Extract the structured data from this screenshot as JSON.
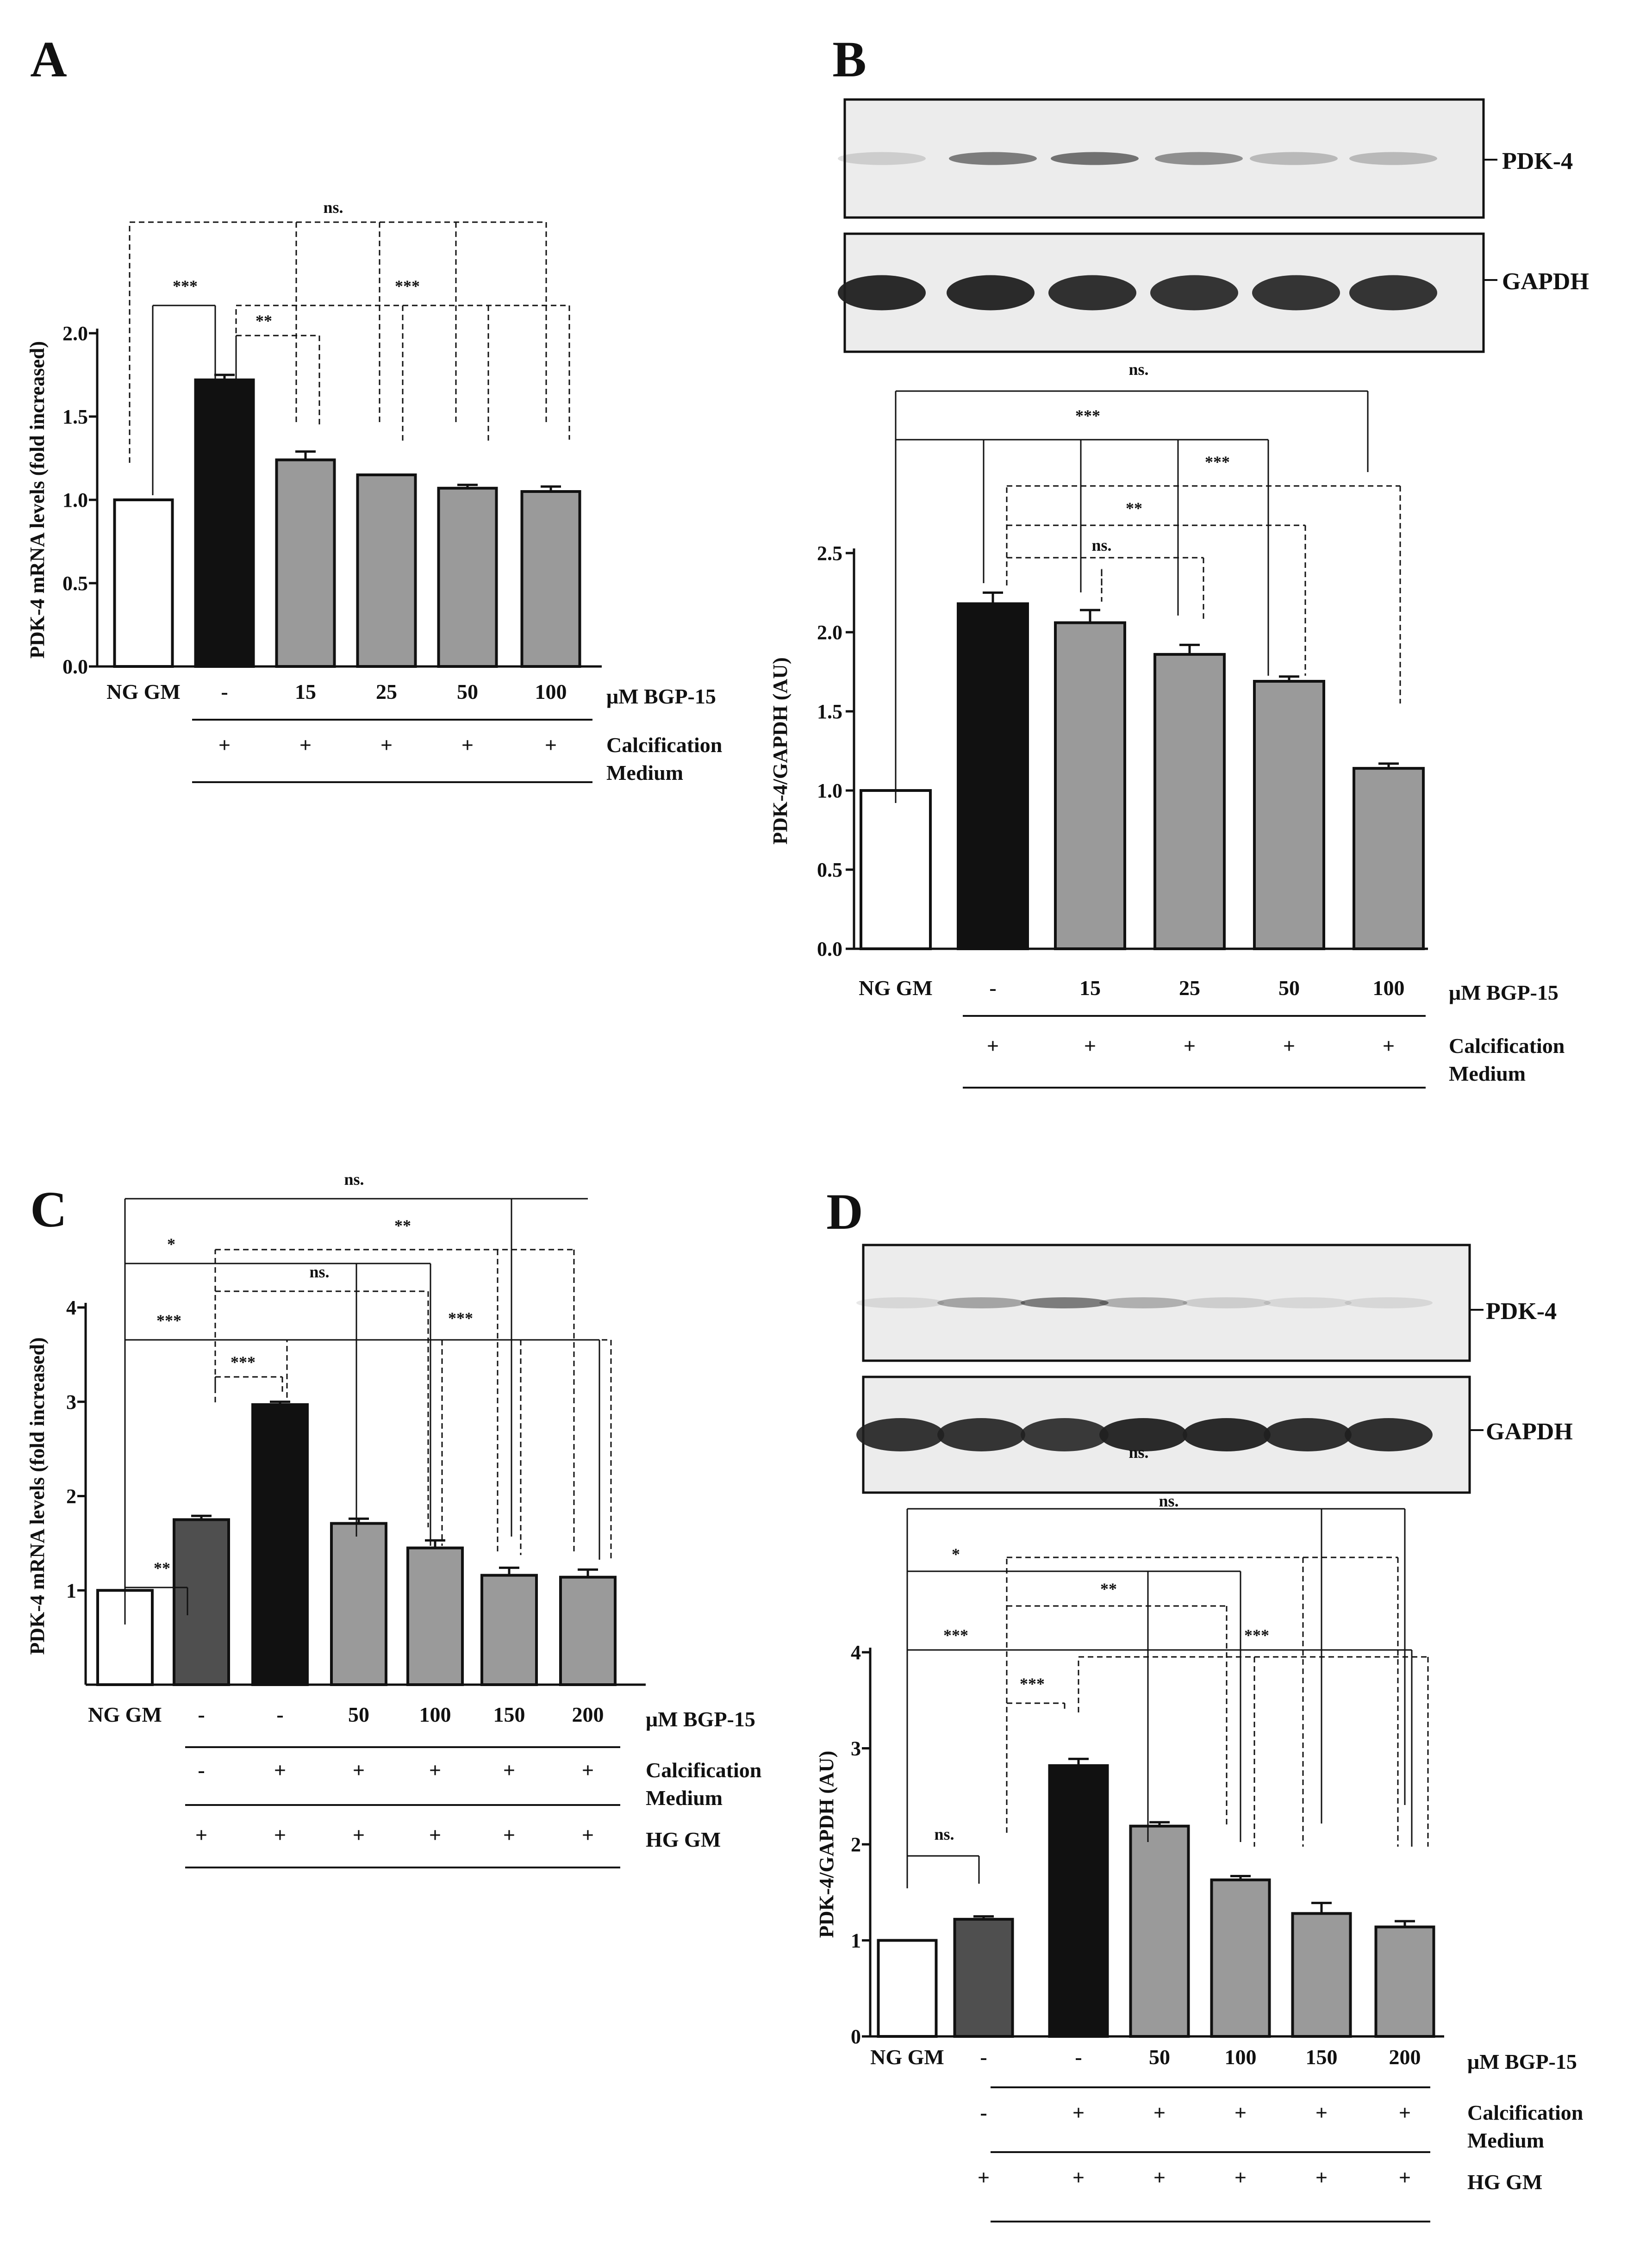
{
  "colors": {
    "white_bar": "#ffffff",
    "ng_dark": "#4f4f4f",
    "black_bar": "#111111",
    "gray_bar": "#9a9a9a",
    "ink": "#111111"
  },
  "panels": [
    {
      "letter": "A",
      "kind": "chart"
    },
    {
      "letter": "B",
      "kind": "blot+chart",
      "blot_labels": [
        "PDK-4",
        "GAPDH"
      ]
    },
    {
      "letter": "C",
      "kind": "chart"
    },
    {
      "letter": "D",
      "kind": "blot+chart",
      "blot_labels": [
        "PDK-4",
        "GAPDH"
      ]
    }
  ],
  "chart_data": [
    {
      "panel": "A",
      "type": "bar",
      "ylabel": "PDK-4 mRNA levels (fold increased)",
      "ylim": [
        0,
        2.0
      ],
      "yticks": [
        "0.0",
        "0.5",
        "1.0",
        "1.5",
        "2.0"
      ],
      "categories": [
        "NG GM",
        "-",
        "15",
        "25",
        "50",
        "100"
      ],
      "values": [
        1.0,
        1.72,
        1.24,
        1.15,
        1.07,
        1.05
      ],
      "errors": [
        0,
        0.03,
        0.05,
        0.0,
        0.02,
        0.03
      ],
      "bar_colors": [
        "white",
        "black",
        "gray",
        "gray",
        "gray",
        "gray"
      ],
      "rows": [
        {
          "label": "μM BGP-15",
          "marks": [
            "NG GM",
            "-",
            "15",
            "25",
            "50",
            "100"
          ]
        },
        {
          "label": "Calcification Medium",
          "marks": [
            "",
            "+",
            "+",
            "+",
            "+",
            "+"
          ]
        }
      ],
      "significance": [
        "ns.",
        "***",
        "***",
        "**"
      ]
    },
    {
      "panel": "B",
      "type": "bar",
      "ylabel": "PDK-4/GAPDH (AU)",
      "ylim": [
        0,
        2.5
      ],
      "yticks": [
        "0.0",
        "0.5",
        "1.0",
        "1.5",
        "2.0",
        "2.5"
      ],
      "categories": [
        "NG GM",
        "-",
        "15",
        "25",
        "50",
        "100"
      ],
      "values": [
        1.0,
        2.18,
        2.06,
        1.86,
        1.69,
        1.14
      ],
      "errors": [
        0,
        0.07,
        0.08,
        0.06,
        0.03,
        0.03
      ],
      "bar_colors": [
        "white",
        "black",
        "gray",
        "gray",
        "gray",
        "gray"
      ],
      "rows": [
        {
          "label": "μM BGP-15",
          "marks": [
            "NG GM",
            "-",
            "15",
            "25",
            "50",
            "100"
          ]
        },
        {
          "label": "Calcification Medium",
          "marks": [
            "",
            "+",
            "+",
            "+",
            "+",
            "+"
          ]
        }
      ],
      "significance": [
        "ns.",
        "***",
        "***",
        "**",
        "ns."
      ]
    },
    {
      "panel": "C",
      "type": "bar",
      "ylabel": "PDK-4 mRNA levels (fold increased)",
      "ylim": [
        0,
        4
      ],
      "yticks": [
        "1",
        "2",
        "3",
        "4"
      ],
      "categories": [
        "NG GM",
        "-",
        "-",
        "50",
        "100",
        "150",
        "200"
      ],
      "values": [
        1.0,
        1.75,
        2.97,
        1.71,
        1.45,
        1.16,
        1.14
      ],
      "errors": [
        0,
        0.04,
        0.03,
        0.05,
        0.08,
        0.08,
        0.08
      ],
      "bar_colors": [
        "white",
        "dark",
        "black",
        "gray",
        "gray",
        "gray",
        "gray"
      ],
      "rows": [
        {
          "label": "μM BGP-15",
          "marks": [
            "NG GM",
            "-",
            "-",
            "50",
            "100",
            "150",
            "200"
          ]
        },
        {
          "label": "Calcification Medium",
          "marks": [
            "",
            "-",
            "+",
            "+",
            "+",
            "+",
            "+"
          ]
        },
        {
          "label": "HG GM",
          "marks": [
            "",
            "+",
            "+",
            "+",
            "+",
            "+",
            "+"
          ]
        }
      ],
      "significance": [
        "ns.",
        "*",
        "**",
        "ns.",
        "***",
        "***",
        "***",
        "**"
      ]
    },
    {
      "panel": "D",
      "type": "bar",
      "ylabel": "PDK-4/GAPDH (AU)",
      "ylim": [
        0,
        4
      ],
      "yticks": [
        "0",
        "1",
        "2",
        "3",
        "4"
      ],
      "categories": [
        "NG GM",
        "-",
        "-",
        "50",
        "100",
        "150",
        "200"
      ],
      "values": [
        1.0,
        1.22,
        2.82,
        2.19,
        1.63,
        1.28,
        1.14
      ],
      "errors": [
        0,
        0.03,
        0.07,
        0.04,
        0.04,
        0.11,
        0.06
      ],
      "bar_colors": [
        "white",
        "dark",
        "black",
        "gray",
        "gray",
        "gray",
        "gray"
      ],
      "rows": [
        {
          "label": "μM BGP-15",
          "marks": [
            "NG GM",
            "-",
            "-",
            "50",
            "100",
            "150",
            "200"
          ]
        },
        {
          "label": "Calcification Medium",
          "marks": [
            "",
            "-",
            "+",
            "+",
            "+",
            "+",
            "+"
          ]
        },
        {
          "label": "HG GM",
          "marks": [
            "",
            "+",
            "+",
            "+",
            "+",
            "+",
            "+"
          ]
        }
      ],
      "significance": [
        "ns.",
        "ns.",
        "*",
        "**",
        "***",
        "***",
        "***",
        "ns."
      ]
    }
  ]
}
